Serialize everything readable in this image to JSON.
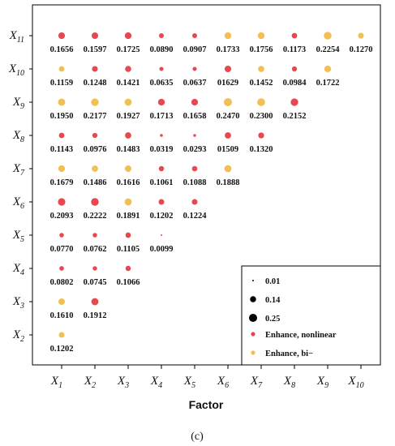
{
  "chart_data": {
    "type": "scatter",
    "title": "",
    "xlabel": "Factor",
    "caption": "(c)",
    "x_factors": [
      "X1",
      "X2",
      "X3",
      "X4",
      "X5",
      "X6",
      "X7",
      "X8",
      "X9",
      "X10"
    ],
    "y_factors": [
      "X11",
      "X10",
      "X9",
      "X8",
      "X7",
      "X6",
      "X5",
      "X4",
      "X3",
      "X2"
    ],
    "colors": {
      "nonlinear": "#e8474f",
      "bivariate": "#f2bf55"
    },
    "legend": {
      "position": "bottom-right",
      "sizes": [
        {
          "value": 0.01,
          "label": "0.01"
        },
        {
          "value": 0.14,
          "label": "0.14"
        },
        {
          "value": 0.25,
          "label": "0.25"
        }
      ],
      "types": [
        {
          "key": "nonlinear",
          "label": "Enhance, nonlinear"
        },
        {
          "key": "bivariate",
          "label": "Enhance, bi−"
        }
      ]
    },
    "rows": [
      {
        "y": "X11",
        "cells": [
          {
            "x": "X1",
            "value": 0.1656,
            "label": "0.1656",
            "type": "nonlinear"
          },
          {
            "x": "X2",
            "value": 0.1597,
            "label": "0.1597",
            "type": "nonlinear"
          },
          {
            "x": "X3",
            "value": 0.1725,
            "label": "0.1725",
            "type": "nonlinear"
          },
          {
            "x": "X4",
            "value": 0.089,
            "label": "0.0890",
            "type": "nonlinear"
          },
          {
            "x": "X5",
            "value": 0.0907,
            "label": "0.0907",
            "type": "nonlinear"
          },
          {
            "x": "X6",
            "value": 0.1733,
            "label": "0.1733",
            "type": "bivariate"
          },
          {
            "x": "X7",
            "value": 0.1756,
            "label": "0.1756",
            "type": "bivariate"
          },
          {
            "x": "X8",
            "value": 0.1173,
            "label": "0.1173",
            "type": "nonlinear"
          },
          {
            "x": "X9",
            "value": 0.2254,
            "label": "0.2254",
            "type": "bivariate"
          },
          {
            "x": "X10",
            "value": 0.127,
            "label": "0.1270",
            "type": "bivariate"
          }
        ]
      },
      {
        "y": "X10",
        "cells": [
          {
            "x": "X1",
            "value": 0.1159,
            "label": "0.1159",
            "type": "bivariate"
          },
          {
            "x": "X2",
            "value": 0.1248,
            "label": "0.1248",
            "type": "nonlinear"
          },
          {
            "x": "X3",
            "value": 0.1421,
            "label": "0.1421",
            "type": "nonlinear"
          },
          {
            "x": "X4",
            "value": 0.0635,
            "label": "0.0635",
            "type": "nonlinear"
          },
          {
            "x": "X5",
            "value": 0.0637,
            "label": "0.0637",
            "type": "nonlinear"
          },
          {
            "x": "X6",
            "value": 0.1629,
            "label": "01629",
            "type": "nonlinear"
          },
          {
            "x": "X7",
            "value": 0.1452,
            "label": "0.1452",
            "type": "bivariate"
          },
          {
            "x": "X8",
            "value": 0.0984,
            "label": "0.0984",
            "type": "nonlinear"
          },
          {
            "x": "X9",
            "value": 0.1722,
            "label": "0.1722",
            "type": "bivariate"
          }
        ]
      },
      {
        "y": "X9",
        "cells": [
          {
            "x": "X1",
            "value": 0.195,
            "label": "0.1950",
            "type": "bivariate"
          },
          {
            "x": "X2",
            "value": 0.2177,
            "label": "0.2177",
            "type": "bivariate"
          },
          {
            "x": "X3",
            "value": 0.1927,
            "label": "0.1927",
            "type": "bivariate"
          },
          {
            "x": "X4",
            "value": 0.1713,
            "label": "0.1713",
            "type": "nonlinear"
          },
          {
            "x": "X5",
            "value": 0.1658,
            "label": "0.1658",
            "type": "nonlinear"
          },
          {
            "x": "X6",
            "value": 0.247,
            "label": "0.2470",
            "type": "bivariate"
          },
          {
            "x": "X7",
            "value": 0.23,
            "label": "0.2300",
            "type": "bivariate"
          },
          {
            "x": "X8",
            "value": 0.2152,
            "label": "0.2152",
            "type": "nonlinear"
          }
        ]
      },
      {
        "y": "X8",
        "cells": [
          {
            "x": "X1",
            "value": 0.1143,
            "label": "0.1143",
            "type": "nonlinear"
          },
          {
            "x": "X2",
            "value": 0.0976,
            "label": "0.0976",
            "type": "nonlinear"
          },
          {
            "x": "X3",
            "value": 0.1483,
            "label": "0.1483",
            "type": "nonlinear"
          },
          {
            "x": "X4",
            "value": 0.0319,
            "label": "0.0319",
            "type": "nonlinear"
          },
          {
            "x": "X5",
            "value": 0.0293,
            "label": "0.0293",
            "type": "nonlinear"
          },
          {
            "x": "X6",
            "value": 0.1509,
            "label": "01509",
            "type": "nonlinear"
          },
          {
            "x": "X7",
            "value": 0.132,
            "label": "0.1320",
            "type": "nonlinear"
          }
        ]
      },
      {
        "y": "X7",
        "cells": [
          {
            "x": "X1",
            "value": 0.1679,
            "label": "0.1679",
            "type": "bivariate"
          },
          {
            "x": "X2",
            "value": 0.1486,
            "label": "0.1486",
            "type": "bivariate"
          },
          {
            "x": "X3",
            "value": 0.1616,
            "label": "0.1616",
            "type": "bivariate"
          },
          {
            "x": "X4",
            "value": 0.1061,
            "label": "0.1061",
            "type": "nonlinear"
          },
          {
            "x": "X5",
            "value": 0.1088,
            "label": "0.1088",
            "type": "nonlinear"
          },
          {
            "x": "X6",
            "value": 0.1888,
            "label": "0.1888",
            "type": "bivariate"
          }
        ]
      },
      {
        "y": "X6",
        "cells": [
          {
            "x": "X1",
            "value": 0.2093,
            "label": "0.2093",
            "type": "nonlinear"
          },
          {
            "x": "X2",
            "value": 0.2222,
            "label": "0.2222",
            "type": "nonlinear"
          },
          {
            "x": "X3",
            "value": 0.1891,
            "label": "0.1891",
            "type": "bivariate"
          },
          {
            "x": "X4",
            "value": 0.1202,
            "label": "0.1202",
            "type": "nonlinear"
          },
          {
            "x": "X5",
            "value": 0.1224,
            "label": "0.1224",
            "type": "nonlinear"
          }
        ]
      },
      {
        "y": "X5",
        "cells": [
          {
            "x": "X1",
            "value": 0.077,
            "label": "0.0770",
            "type": "nonlinear"
          },
          {
            "x": "X2",
            "value": 0.0762,
            "label": "0.0762",
            "type": "nonlinear"
          },
          {
            "x": "X3",
            "value": 0.1105,
            "label": "0.1105",
            "type": "nonlinear"
          },
          {
            "x": "X4",
            "value": 0.0099,
            "label": "0.0099",
            "type": "nonlinear"
          }
        ]
      },
      {
        "y": "X4",
        "cells": [
          {
            "x": "X1",
            "value": 0.0802,
            "label": "0.0802",
            "type": "nonlinear"
          },
          {
            "x": "X2",
            "value": 0.0745,
            "label": "0.0745",
            "type": "nonlinear"
          },
          {
            "x": "X3",
            "value": 0.1066,
            "label": "0.1066",
            "type": "nonlinear"
          }
        ]
      },
      {
        "y": "X3",
        "cells": [
          {
            "x": "X1",
            "value": 0.161,
            "label": "0.1610",
            "type": "bivariate"
          },
          {
            "x": "X2",
            "value": 0.1912,
            "label": "0.1912",
            "type": "nonlinear"
          }
        ]
      },
      {
        "y": "X2",
        "cells": [
          {
            "x": "X1",
            "value": 0.1202,
            "label": "0.1202",
            "type": "bivariate"
          }
        ]
      }
    ]
  }
}
